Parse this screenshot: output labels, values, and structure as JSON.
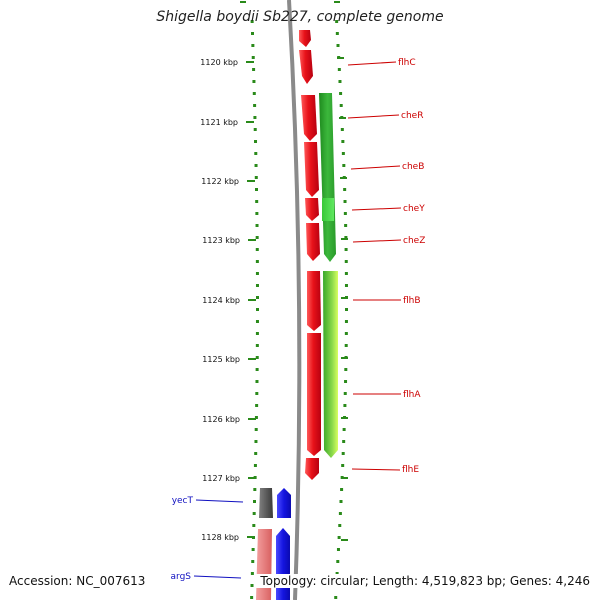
{
  "title": "Shigella boydii Sb227, complete genome",
  "accession": "Accession: NC_007613",
  "footer": "Topology: circular; Length: 4,519,823 bp; Genes: 4,246",
  "colors": {
    "backbone": "#8a8a8a",
    "tick": "#2a8a1a",
    "forward_gene": "#e8121a",
    "orf": "#2aa82a",
    "label_forward": "#cc0000",
    "label_reverse": "#1010c0",
    "reverse_gene": "#1515e0",
    "gray_feature": "#606060",
    "pink_feature": "#e88080"
  },
  "ticks": [
    {
      "label": "1120 kbp"
    },
    {
      "label": "1121 kbp"
    },
    {
      "label": "1122 kbp"
    },
    {
      "label": "1123 kbp"
    },
    {
      "label": "1124 kbp"
    },
    {
      "label": "1125 kbp"
    },
    {
      "label": "1126 kbp"
    },
    {
      "label": "1127 kbp"
    },
    {
      "label": "1128 kbp"
    }
  ],
  "genes_forward": [
    {
      "name": "flhC"
    },
    {
      "name": "cheR"
    },
    {
      "name": "cheB"
    },
    {
      "name": "cheY"
    },
    {
      "name": "cheZ"
    },
    {
      "name": "flhB"
    },
    {
      "name": "flhA"
    },
    {
      "name": "flhE"
    }
  ],
  "genes_reverse": [
    {
      "name": "yecT"
    },
    {
      "name": "argS"
    }
  ]
}
